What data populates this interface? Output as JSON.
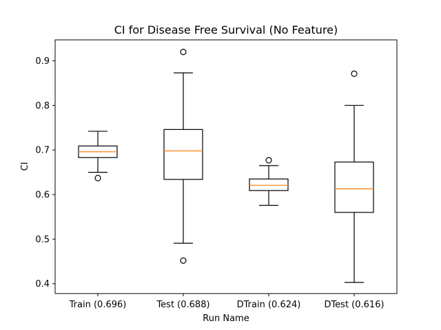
{
  "chart_data": {
    "type": "box",
    "title": "CI for Disease Free Survival (No Feature)",
    "xlabel": "Run Name",
    "ylabel": "CI",
    "ylim": [
      0.378,
      0.947
    ],
    "yticks": [
      0.4,
      0.5,
      0.6,
      0.7,
      0.8,
      0.9
    ],
    "grid": false,
    "categories": [
      "Train (0.696)",
      "Test (0.688)",
      "DTrain (0.624)",
      "DTest (0.616)"
    ],
    "boxes": [
      {
        "whisker_low": 0.65,
        "q1": 0.683,
        "median": 0.696,
        "q3": 0.709,
        "whisker_high": 0.742,
        "outliers": [
          0.637
        ]
      },
      {
        "whisker_low": 0.491,
        "q1": 0.634,
        "median": 0.698,
        "q3": 0.746,
        "whisker_high": 0.873,
        "outliers": [
          0.92,
          0.452
        ]
      },
      {
        "whisker_low": 0.576,
        "q1": 0.609,
        "median": 0.621,
        "q3": 0.635,
        "whisker_high": 0.665,
        "outliers": [
          0.677
        ]
      },
      {
        "whisker_low": 0.403,
        "q1": 0.56,
        "median": 0.613,
        "q3": 0.673,
        "whisker_high": 0.8,
        "outliers": [
          0.871
        ]
      }
    ],
    "colors": {
      "box": "#000000",
      "median": "#ff7f0e",
      "outlier": "#000000"
    }
  }
}
